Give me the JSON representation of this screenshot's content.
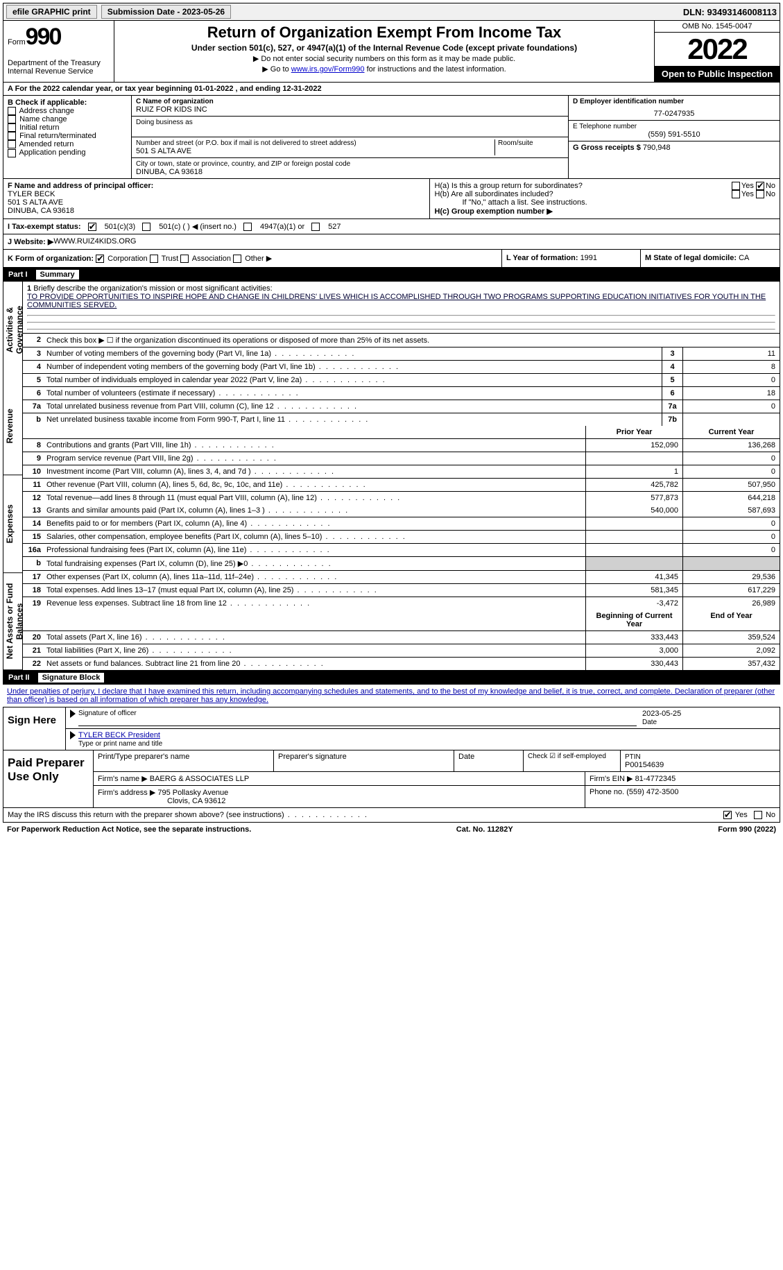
{
  "topbar": {
    "efile": "efile GRAPHIC print",
    "sub_lbl": "Submission Date - 2023-05-26",
    "dln": "DLN: 93493146008113"
  },
  "header": {
    "form_word": "Form",
    "form_num": "990",
    "title": "Return of Organization Exempt From Income Tax",
    "sub1": "Under section 501(c), 527, or 4947(a)(1) of the Internal Revenue Code (except private foundations)",
    "sub2": "▶ Do not enter social security numbers on this form as it may be made public.",
    "sub3_pre": "▶ Go to ",
    "sub3_link": "www.irs.gov/Form990",
    "sub3_post": " for instructions and the latest information.",
    "dept": "Department of the Treasury Internal Revenue Service",
    "omb": "OMB No. 1545-0047",
    "year": "2022",
    "open_pub": "Open to Public Inspection"
  },
  "lineA": "A For the 2022 calendar year, or tax year beginning 01-01-2022   , and ending 12-31-2022",
  "sectionB": {
    "b_label": "B Check if applicable:",
    "b_opts": [
      "Address change",
      "Name change",
      "Initial return",
      "Final return/terminated",
      "Amended return",
      "Application pending"
    ],
    "c_label": "C Name of organization",
    "c_name": "RUIZ FOR KIDS INC",
    "dba_label": "Doing business as",
    "addr_label": "Number and street (or P.O. box if mail is not delivered to street address)",
    "room_label": "Room/suite",
    "addr": "501 S ALTA AVE",
    "city_label": "City or town, state or province, country, and ZIP or foreign postal code",
    "city": "DINUBA, CA  93618",
    "d_label": "D Employer identification number",
    "d_val": "77-0247935",
    "e_label": "E Telephone number",
    "e_val": "(559) 591-5510",
    "g_label": "G Gross receipts $ ",
    "g_val": "790,948"
  },
  "fh": {
    "f_label": "F  Name and address of principal officer:",
    "f_name": "TYLER BECK",
    "f_addr1": "501 S ALTA AVE",
    "f_addr2": "DINUBA, CA  93618",
    "ha_label": "H(a)  Is this a group return for subordinates?",
    "hb_label": "H(b)  Are all subordinates included?",
    "hb_note": "If \"No,\" attach a list. See instructions.",
    "hc_label": "H(c)  Group exemption number ▶",
    "yes": "Yes",
    "no": "No"
  },
  "status": {
    "i_label": "I   Tax-exempt status:",
    "opt1": "501(c)(3)",
    "opt2": "501(c) (  ) ◀ (insert no.)",
    "opt3": "4947(a)(1) or",
    "opt4": "527"
  },
  "website": {
    "j_label": "J  Website: ▶",
    "val": " WWW.RUIZ4KIDS.ORG"
  },
  "kform": {
    "k_label": "K Form of organization:",
    "opts": [
      "Corporation",
      "Trust",
      "Association",
      "Other ▶"
    ],
    "l_label": "L Year of formation: ",
    "l_val": "1991",
    "m_label": "M State of legal domicile: ",
    "m_val": "CA"
  },
  "part1": {
    "num": "Part I",
    "title": "Summary"
  },
  "summary": {
    "sideA": "Activities & Governance",
    "sideR": "Revenue",
    "sideE": "Expenses",
    "sideN": "Net Assets or Fund Balances",
    "line1_label": "Briefly describe the organization's mission or most significant activities:",
    "line1_text": "TO PROVIDE OPPORTUNITIES TO INSPIRE HOPE AND CHANGE IN CHILDRENS' LIVES WHICH IS ACCOMPLISHED THROUGH TWO PROGRAMS SUPPORTING EDUCATION INITIATIVES FOR YOUTH IN THE COMMUNITIES SERVED.",
    "line2": "Check this box ▶ ☐  if the organization discontinued its operations or disposed of more than 25% of its net assets.",
    "lines_ag": [
      {
        "n": "3",
        "d": "Number of voting members of the governing body (Part VI, line 1a)",
        "b": "3",
        "v": "11"
      },
      {
        "n": "4",
        "d": "Number of independent voting members of the governing body (Part VI, line 1b)",
        "b": "4",
        "v": "8"
      },
      {
        "n": "5",
        "d": "Total number of individuals employed in calendar year 2022 (Part V, line 2a)",
        "b": "5",
        "v": "0"
      },
      {
        "n": "6",
        "d": "Total number of volunteers (estimate if necessary)",
        "b": "6",
        "v": "18"
      },
      {
        "n": "7a",
        "d": "Total unrelated business revenue from Part VIII, column (C), line 12",
        "b": "7a",
        "v": "0"
      },
      {
        "n": "b",
        "d": "Net unrelated business taxable income from Form 990-T, Part I, line 11",
        "b": "7b",
        "v": ""
      }
    ],
    "hdr_prior": "Prior Year",
    "hdr_cur": "Current Year",
    "lines_rev": [
      {
        "n": "8",
        "d": "Contributions and grants (Part VIII, line 1h)",
        "p": "152,090",
        "c": "136,268"
      },
      {
        "n": "9",
        "d": "Program service revenue (Part VIII, line 2g)",
        "p": "",
        "c": "0"
      },
      {
        "n": "10",
        "d": "Investment income (Part VIII, column (A), lines 3, 4, and 7d )",
        "p": "1",
        "c": "0"
      },
      {
        "n": "11",
        "d": "Other revenue (Part VIII, column (A), lines 5, 6d, 8c, 9c, 10c, and 11e)",
        "p": "425,782",
        "c": "507,950"
      },
      {
        "n": "12",
        "d": "Total revenue—add lines 8 through 11 (must equal Part VIII, column (A), line 12)",
        "p": "577,873",
        "c": "644,218"
      }
    ],
    "lines_exp": [
      {
        "n": "13",
        "d": "Grants and similar amounts paid (Part IX, column (A), lines 1–3 )",
        "p": "540,000",
        "c": "587,693"
      },
      {
        "n": "14",
        "d": "Benefits paid to or for members (Part IX, column (A), line 4)",
        "p": "",
        "c": "0"
      },
      {
        "n": "15",
        "d": "Salaries, other compensation, employee benefits (Part IX, column (A), lines 5–10)",
        "p": "",
        "c": "0"
      },
      {
        "n": "16a",
        "d": "Professional fundraising fees (Part IX, column (A), line 11e)",
        "p": "",
        "c": "0"
      },
      {
        "n": "b",
        "d": "Total fundraising expenses (Part IX, column (D), line 25) ▶0",
        "p": "shade",
        "c": "shade"
      },
      {
        "n": "17",
        "d": "Other expenses (Part IX, column (A), lines 11a–11d, 11f–24e)",
        "p": "41,345",
        "c": "29,536"
      },
      {
        "n": "18",
        "d": "Total expenses. Add lines 13–17 (must equal Part IX, column (A), line 25)",
        "p": "581,345",
        "c": "617,229"
      },
      {
        "n": "19",
        "d": "Revenue less expenses. Subtract line 18 from line 12",
        "p": "-3,472",
        "c": "26,989"
      }
    ],
    "hdr_beg": "Beginning of Current Year",
    "hdr_end": "End of Year",
    "lines_net": [
      {
        "n": "20",
        "d": "Total assets (Part X, line 16)",
        "p": "333,443",
        "c": "359,524"
      },
      {
        "n": "21",
        "d": "Total liabilities (Part X, line 26)",
        "p": "3,000",
        "c": "2,092"
      },
      {
        "n": "22",
        "d": "Net assets or fund balances. Subtract line 21 from line 20",
        "p": "330,443",
        "c": "357,432"
      }
    ]
  },
  "part2": {
    "num": "Part II",
    "title": "Signature Block"
  },
  "sig": {
    "intro": "Under penalties of perjury, I declare that I have examined this return, including accompanying schedules and statements, and to the best of my knowledge and belief, it is true, correct, and complete. Declaration of preparer (other than officer) is based on all information of which preparer has any knowledge.",
    "sign_here": "Sign Here",
    "sig_officer": "Signature of officer",
    "date_lbl": "Date",
    "sig_date": "2023-05-25",
    "name_title": "TYLER BECK  President",
    "type_lbl": "Type or print name and title"
  },
  "prep": {
    "label": "Paid Preparer Use Only",
    "h1": "Print/Type preparer's name",
    "h2": "Preparer's signature",
    "h3": "Date",
    "chk_lbl": "Check ☑ if self-employed",
    "ptin_lbl": "PTIN",
    "ptin": "P00154639",
    "firm_name_lbl": "Firm's name   ▶",
    "firm_name": "BAERG & ASSOCIATES LLP",
    "firm_ein_lbl": "Firm's EIN ▶",
    "firm_ein": "81-4772345",
    "firm_addr_lbl": "Firm's address ▶",
    "firm_addr1": "795 Pollasky Avenue",
    "firm_addr2": "Clovis, CA  93612",
    "phone_lbl": "Phone no. ",
    "phone": "(559) 472-3500"
  },
  "footer": {
    "discuss": "May the IRS discuss this return with the preparer shown above? (see instructions)",
    "yes": "Yes",
    "no": "No",
    "pra": "For Paperwork Reduction Act Notice, see the separate instructions.",
    "cat": "Cat. No. 11282Y",
    "form": "Form 990 (2022)"
  }
}
